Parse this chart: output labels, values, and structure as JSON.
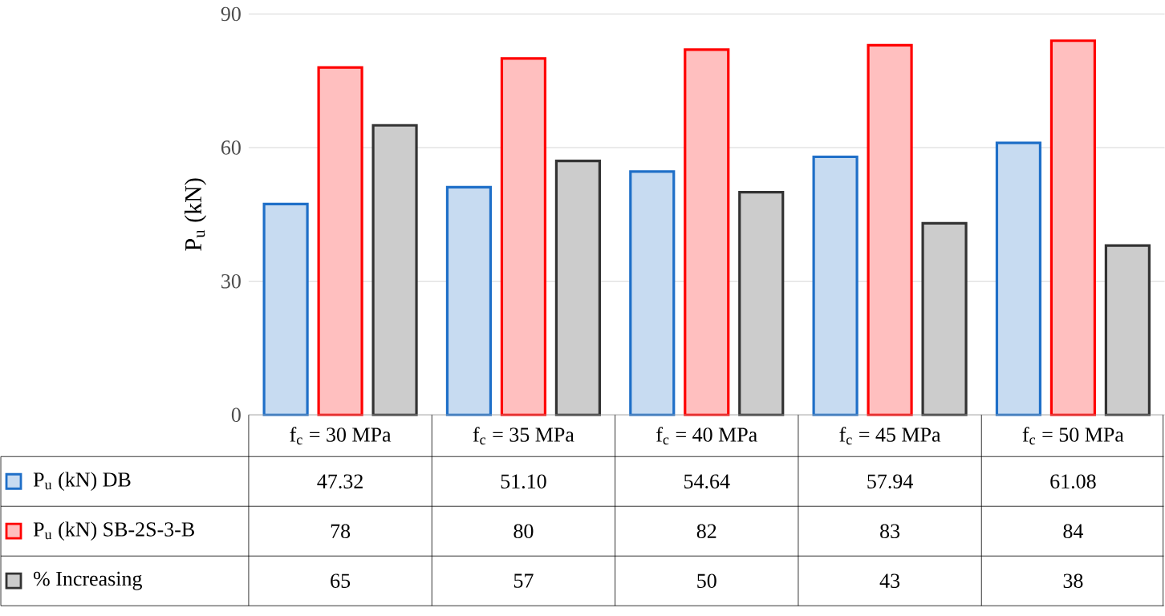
{
  "chart_data": {
    "type": "bar",
    "ylabel": "P$_{u}$ (kN)",
    "categories": [
      "f$_{c}$ = 30 MPa",
      "f$_{c}$ = 35 MPa",
      "f$_{c}$ = 40 MPa",
      "f$_{c}$ = 45 MPa",
      "f$_{c}$ = 50 MPa"
    ],
    "series": [
      {
        "name": "P$_{u}$ (kN) DB",
        "color": "#1f6fc8",
        "values": [
          47.32,
          51.1,
          54.64,
          57.94,
          61.08
        ],
        "value_labels": [
          "47.32",
          "51.10",
          "54.64",
          "57.94",
          "61.08"
        ]
      },
      {
        "name": "P$_{u}$ (kN) SB-2S-3-B",
        "color": "#ff0000",
        "values": [
          78,
          80,
          82,
          83,
          84
        ],
        "value_labels": [
          "78",
          "80",
          "82",
          "83",
          "84"
        ]
      },
      {
        "name": "% Increasing",
        "color": "#333333",
        "values": [
          65,
          57,
          50,
          43,
          38
        ],
        "value_labels": [
          "65",
          "57",
          "50",
          "43",
          "38"
        ]
      }
    ],
    "ylim": [
      0,
      90
    ],
    "yticks": [
      0,
      30,
      60,
      90
    ],
    "grid": "y",
    "legend": "bottom left"
  }
}
